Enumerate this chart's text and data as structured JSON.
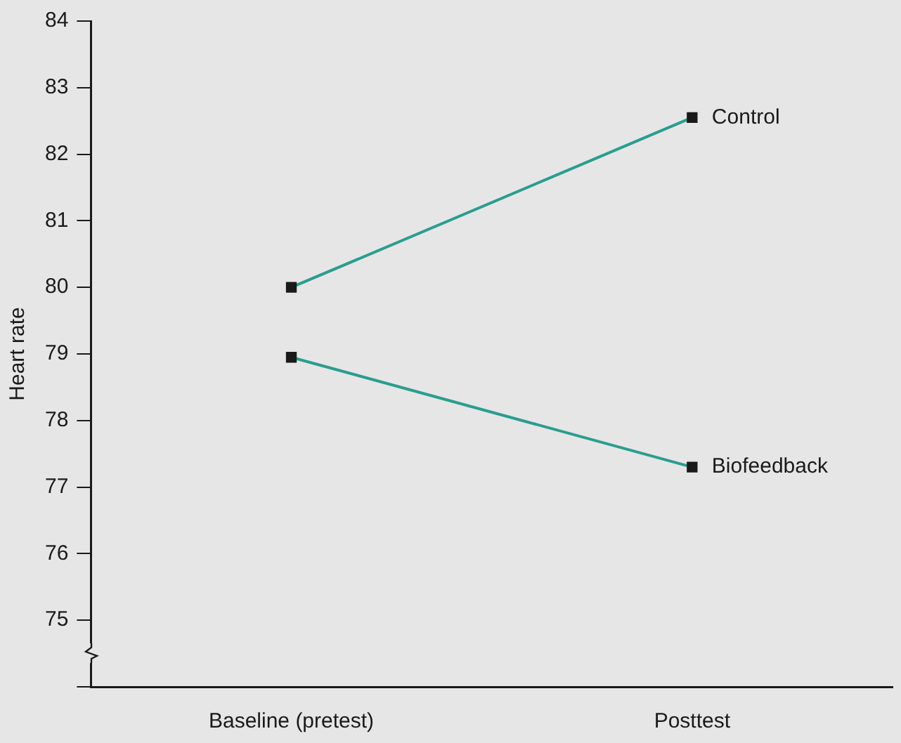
{
  "chart_data": {
    "type": "line",
    "ylabel": "Heart rate",
    "categories": [
      "Baseline (pretest)",
      "Posttest"
    ],
    "series": [
      {
        "name": "Control",
        "color": "#2a9d8f",
        "values": [
          80,
          82.55
        ]
      },
      {
        "name": "Biofeedback",
        "color": "#2a9d8f",
        "values": [
          78.95,
          77.3
        ]
      }
    ],
    "ylim": [
      74,
      84
    ],
    "yticks": [
      {
        "value": 74,
        "label": null
      },
      75,
      76,
      77,
      78,
      79,
      80,
      81,
      82,
      83,
      84
    ],
    "grid": false,
    "legend": false,
    "marker": "square",
    "line_style": "solid"
  }
}
